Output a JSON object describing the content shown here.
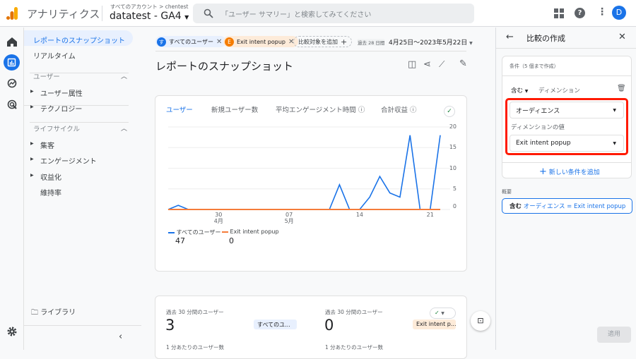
{
  "header": {
    "app_name": "アナリティクス",
    "breadcrumb_account": "すべてのアカウント",
    "breadcrumb_sep": ">",
    "breadcrumb_property": "chentest",
    "property_name": "datatest - GA4",
    "search_placeholder": "「ユーザー サマリー」と検索してみてください",
    "avatar_letter": "D"
  },
  "sidebar": {
    "items": [
      {
        "label": "レポートのスナップショット",
        "active": true
      },
      {
        "label": "リアルタイム"
      }
    ],
    "sections": [
      {
        "label": "ユーザー",
        "items": [
          "ユーザー属性",
          "テクノロジー"
        ]
      },
      {
        "label": "ライフサイクル",
        "items": [
          "集客",
          "エンゲージメント",
          "収益化",
          "維持率"
        ]
      }
    ],
    "library": "ライブラリ"
  },
  "compare_bar": {
    "chips": [
      {
        "badge": "す",
        "label": "すべてのユーザー",
        "color": "#1a73e8"
      },
      {
        "badge": "E",
        "label": "Exit intent popup",
        "color": "#f57c00"
      }
    ],
    "add_label": "比較対象を追加",
    "range_label": "過去 28 日間",
    "date_range": "4月25日～2023年5月22日"
  },
  "page_title": "レポートのスナップショット",
  "chart_card": {
    "tabs": [
      "ユーザー",
      "新規ユーザー数",
      "平均エンゲージメント時間",
      "合計収益"
    ],
    "active_tab": 0
  },
  "chart_data": {
    "type": "line",
    "x": [
      "4/25",
      "4/26",
      "4/27",
      "4/28",
      "4/29",
      "4/30",
      "5/1",
      "5/2",
      "5/3",
      "5/4",
      "5/5",
      "5/6",
      "5/7",
      "5/8",
      "5/9",
      "5/10",
      "5/11",
      "5/12",
      "5/13",
      "5/14",
      "5/15",
      "5/16",
      "5/17",
      "5/18",
      "5/19",
      "5/20",
      "5/21",
      "5/22"
    ],
    "x_ticks": [
      {
        "index": 5,
        "label": "30",
        "sub": "4月"
      },
      {
        "index": 12,
        "label": "07",
        "sub": "5月"
      },
      {
        "index": 19,
        "label": "14",
        "sub": ""
      },
      {
        "index": 26,
        "label": "21",
        "sub": ""
      }
    ],
    "y_ticks": [
      0,
      5,
      10,
      15,
      20
    ],
    "ylim": [
      0,
      20
    ],
    "grid": true,
    "legend_placement": "bottom-left",
    "series": [
      {
        "name": "すべてのユーザー",
        "color": "#1a73e8",
        "total": "47",
        "values": [
          0,
          1,
          0,
          0,
          0,
          0,
          0,
          0,
          0,
          0,
          0,
          0,
          0,
          0,
          0,
          0,
          0,
          6,
          0,
          0,
          3,
          8,
          4,
          3,
          18,
          0,
          0,
          18
        ]
      },
      {
        "name": "Exit intent popup",
        "color": "#f57c3a",
        "total": "0",
        "values": [
          0,
          0,
          0,
          0,
          0,
          0,
          0,
          0,
          0,
          0,
          0,
          0,
          0,
          0,
          0,
          0,
          0,
          0,
          0,
          0,
          0,
          0,
          0,
          0,
          0,
          0,
          0,
          0
        ]
      }
    ]
  },
  "realtime_card": {
    "left": {
      "label": "過去 30 分間のユーザー",
      "value": "3",
      "segment": "すべてのユ...",
      "sub": "1 分あたりのユーザー数"
    },
    "right": {
      "label": "過去 30 分間のユーザー",
      "value": "0",
      "segment": "Exit intent p...",
      "sub": "1 分あたりのユーザー数"
    }
  },
  "panel": {
    "title": "比較の作成",
    "conditions_label": "条件（5 個まで作成）",
    "include": "含む",
    "dimension_label": "ディメンション",
    "dimension_value": "オーディエンス",
    "dimension_value_label": "ディメンションの値",
    "value_selected": "Exit intent popup",
    "add_condition": "新しい条件を追加",
    "summary_label": "概要",
    "summary_include": "含む",
    "summary_text": "オーディエンス = Exit intent popup",
    "apply": "適用",
    "highlight_color": "#ff1a00"
  }
}
